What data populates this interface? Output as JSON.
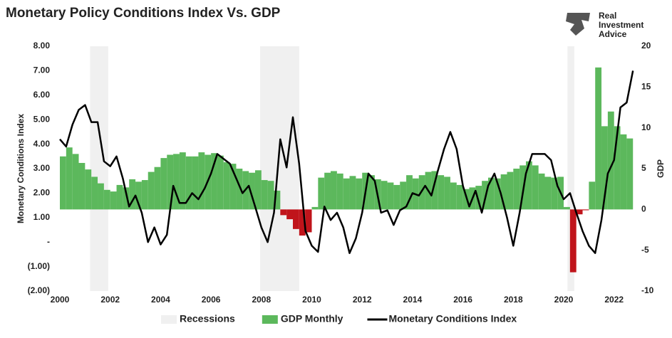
{
  "chart_data": {
    "type": "combo",
    "title": "Monetary Policy Conditions Index Vs. GDP",
    "brand": [
      "Real",
      "Investment",
      "Advice"
    ],
    "y_label": "Monetary Conditions Index",
    "y2_label": "GDP",
    "xlim": [
      2000,
      2022.8
    ],
    "xticks": [
      2000,
      2002,
      2004,
      2006,
      2008,
      2010,
      2012,
      2014,
      2016,
      2018,
      2020,
      2022
    ],
    "ylim": [
      -2,
      8
    ],
    "yticks": [
      {
        "value": 8,
        "label": "8.00"
      },
      {
        "value": 7,
        "label": "7.00"
      },
      {
        "value": 6,
        "label": "6.00"
      },
      {
        "value": 5,
        "label": "5.00"
      },
      {
        "value": 4,
        "label": "4.00"
      },
      {
        "value": 3,
        "label": "3.00"
      },
      {
        "value": 2,
        "label": "2.00"
      },
      {
        "value": 1,
        "label": "1.00"
      },
      {
        "value": 0,
        "label": "-"
      },
      {
        "value": -1,
        "label": "(1.00)"
      },
      {
        "value": -2,
        "label": "(2.00)"
      }
    ],
    "y2lim": [
      -10,
      20
    ],
    "y2ticks": [
      20,
      15,
      10,
      5,
      0,
      -5,
      -10
    ],
    "series": [
      {
        "name": "Recessions",
        "kind": "span",
        "color": "#f0f0f0",
        "axis": "y2",
        "spans": [
          [
            2001.2,
            2001.92
          ],
          [
            2007.95,
            2009.5
          ],
          [
            2020.15,
            2020.42
          ]
        ]
      },
      {
        "name": "GDP Monthly",
        "kind": "bar",
        "color": "#5cb85c",
        "negative_color": "#c0141b",
        "axis": "y2",
        "width": 0.25,
        "x": [
          2000,
          2000.25,
          2000.5,
          2000.75,
          2001,
          2001.25,
          2001.5,
          2001.75,
          2002,
          2002.25,
          2002.5,
          2002.75,
          2003,
          2003.25,
          2003.5,
          2003.75,
          2004,
          2004.25,
          2004.5,
          2004.75,
          2005,
          2005.25,
          2005.5,
          2005.75,
          2006,
          2006.25,
          2006.5,
          2006.75,
          2007,
          2007.25,
          2007.5,
          2007.75,
          2008,
          2008.25,
          2008.5,
          2008.75,
          2009,
          2009.25,
          2009.5,
          2009.75,
          2010,
          2010.25,
          2010.5,
          2010.75,
          2011,
          2011.25,
          2011.5,
          2011.75,
          2012,
          2012.25,
          2012.5,
          2012.75,
          2013,
          2013.25,
          2013.5,
          2013.75,
          2014,
          2014.25,
          2014.5,
          2014.75,
          2015,
          2015.25,
          2015.5,
          2015.75,
          2016,
          2016.25,
          2016.5,
          2016.75,
          2017,
          2017.25,
          2017.5,
          2017.75,
          2018,
          2018.25,
          2018.5,
          2018.75,
          2019,
          2019.25,
          2019.5,
          2019.75,
          2020,
          2020.25,
          2020.5,
          2020.75,
          2021,
          2021.25,
          2021.5,
          2021.75,
          2022,
          2022.25,
          2022.5
        ],
        "values": [
          6.5,
          7.6,
          6.8,
          5.7,
          4.9,
          4.0,
          3.2,
          2.4,
          2.2,
          3.0,
          2.7,
          3.7,
          3.4,
          3.6,
          4.6,
          5.2,
          6.3,
          6.7,
          6.8,
          7.0,
          6.5,
          6.5,
          7.0,
          6.7,
          6.9,
          6.6,
          5.8,
          5.6,
          5.0,
          4.7,
          4.5,
          4.8,
          3.6,
          3.5,
          2.3,
          -0.7,
          -1.2,
          -2.4,
          -3.2,
          -2.8,
          0.3,
          3.9,
          4.5,
          4.7,
          4.4,
          3.8,
          4.1,
          3.8,
          4.5,
          4.2,
          3.7,
          3.5,
          3.3,
          3.0,
          3.4,
          4.2,
          3.8,
          4.2,
          4.6,
          4.7,
          4.2,
          4.0,
          3.3,
          3.0,
          2.5,
          2.7,
          2.9,
          3.5,
          3.9,
          3.8,
          4.3,
          4.6,
          5.0,
          5.4,
          5.9,
          5.4,
          4.4,
          4.0,
          3.9,
          4.0,
          0.3,
          -7.7,
          -0.6,
          -0.1,
          3.4,
          17.4,
          10.2,
          12.0,
          10.2,
          9.2,
          8.7
        ]
      },
      {
        "name": "Monetary Conditions Index",
        "kind": "line",
        "color": "#000000",
        "x": [
          2000,
          2000.25,
          2000.5,
          2000.75,
          2001,
          2001.25,
          2001.5,
          2001.75,
          2002,
          2002.25,
          2002.5,
          2002.75,
          2003,
          2003.25,
          2003.5,
          2003.75,
          2004,
          2004.25,
          2004.5,
          2004.75,
          2005,
          2005.25,
          2005.5,
          2005.75,
          2006,
          2006.25,
          2006.5,
          2006.75,
          2007,
          2007.25,
          2007.5,
          2007.75,
          2008,
          2008.25,
          2008.5,
          2008.75,
          2009,
          2009.25,
          2009.5,
          2009.75,
          2010,
          2010.25,
          2010.5,
          2010.75,
          2011,
          2011.25,
          2011.5,
          2011.75,
          2012,
          2012.25,
          2012.5,
          2012.75,
          2013,
          2013.25,
          2013.5,
          2013.75,
          2014,
          2014.25,
          2014.5,
          2014.75,
          2015,
          2015.25,
          2015.5,
          2015.75,
          2016,
          2016.25,
          2016.5,
          2016.75,
          2017,
          2017.25,
          2017.5,
          2017.75,
          2018,
          2018.25,
          2018.5,
          2018.75,
          2019,
          2019.25,
          2019.5,
          2019.75,
          2020,
          2020.25,
          2020.5,
          2020.75,
          2021,
          2021.25,
          2021.5,
          2021.75,
          2022,
          2022.25,
          2022.5,
          2022.75
        ],
        "values": [
          4.2,
          3.9,
          4.8,
          5.4,
          5.6,
          4.9,
          4.9,
          3.3,
          3.1,
          3.5,
          2.6,
          1.45,
          1.9,
          1.2,
          0,
          0.6,
          -0.1,
          0.3,
          2.3,
          1.6,
          1.6,
          2.0,
          1.75,
          2.2,
          2.8,
          3.6,
          3.4,
          3.2,
          2.6,
          2.0,
          2.3,
          1.45,
          0.6,
          0,
          1.2,
          4.2,
          3.05,
          5.1,
          3.2,
          0.45,
          -0.15,
          -0.4,
          1.45,
          0.9,
          1.2,
          0.6,
          -0.45,
          0.15,
          1.2,
          2.8,
          2.5,
          1.2,
          1.3,
          0.7,
          1.3,
          1.45,
          2.0,
          1.9,
          2.3,
          1.9,
          2.9,
          3.8,
          4.5,
          3.8,
          2.3,
          1.45,
          2.1,
          1.2,
          2.3,
          2.8,
          2.0,
          1.0,
          -0.15,
          1.2,
          2.8,
          3.6,
          3.6,
          3.6,
          3.35,
          2.3,
          1.75,
          2.0,
          1.2,
          0.45,
          -0.15,
          -0.45,
          0.9,
          2.8,
          3.35,
          5.5,
          5.7,
          7.0
        ]
      }
    ],
    "legend": "bottom"
  }
}
